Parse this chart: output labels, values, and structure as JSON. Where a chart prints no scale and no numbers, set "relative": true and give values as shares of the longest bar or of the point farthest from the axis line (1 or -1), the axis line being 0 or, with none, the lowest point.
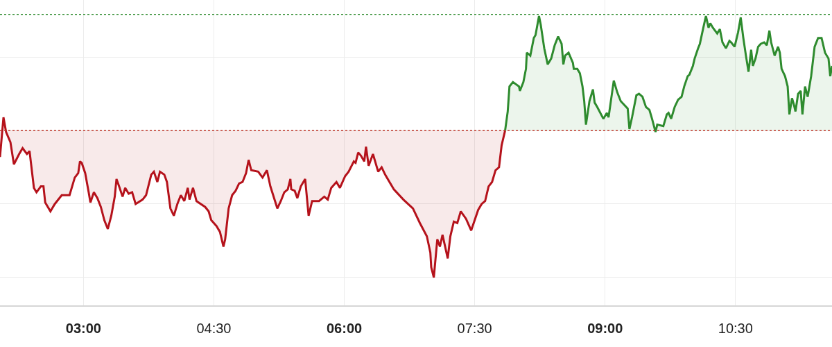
{
  "chart_data": {
    "type": "area",
    "relative": true,
    "grid": true,
    "tick_labels": "x",
    "line_style": "solid",
    "marker": "none",
    "xlim": [
      2.04,
      11.61
    ],
    "xticks": [
      {
        "value": 3,
        "label": "03:00"
      },
      {
        "value": 4.5,
        "label": "04:30"
      },
      {
        "value": 6,
        "label": "06:00"
      },
      {
        "value": 7.5,
        "label": "07:30"
      },
      {
        "value": 9,
        "label": "09:00"
      },
      {
        "value": 10.5,
        "label": "10:30"
      }
    ],
    "ref_lines": [
      {
        "axis": "y",
        "value": 0,
        "label": null,
        "color": "#c0392b",
        "line_style": "dotted"
      },
      {
        "axis": "y",
        "value": 0.79,
        "label": null,
        "color": "#2e8b2e",
        "line_style": "dotted"
      }
    ],
    "series": [
      {
        "color": "#b5121b",
        "x": [
          2.04,
          2.08,
          2.11,
          2.16,
          2.2,
          2.26,
          2.3,
          2.35,
          2.38,
          2.43,
          2.46,
          2.51,
          2.54,
          2.56,
          2.62,
          2.67,
          2.75,
          2.84,
          2.9,
          2.94,
          2.96,
          2.98,
          3.02,
          3.06,
          3.08,
          3.12,
          3.16,
          3.2,
          3.24,
          3.28,
          3.32,
          3.36,
          3.38,
          3.41,
          3.45,
          3.48,
          3.52,
          3.56,
          3.6,
          3.68,
          3.72,
          3.78,
          3.81,
          3.85,
          3.88,
          3.93,
          3.96,
          4.0,
          4.04,
          4.08,
          4.12,
          4.16,
          4.2,
          4.22,
          4.26,
          4.3,
          4.4,
          4.44,
          4.47,
          4.53,
          4.57,
          4.61,
          4.63,
          4.67,
          4.71,
          4.75,
          4.79,
          4.83,
          4.87,
          4.9,
          4.93,
          5.01,
          5.06,
          5.11,
          5.15,
          5.23,
          5.27,
          5.31,
          5.35,
          5.38,
          5.39,
          5.43,
          5.46,
          5.5,
          5.55,
          5.59,
          5.63,
          5.71,
          5.77,
          5.81,
          5.85,
          5.91,
          5.95,
          6.01,
          6.05,
          6.11,
          6.13,
          6.16,
          6.19,
          6.23,
          6.25,
          6.28,
          6.33,
          6.39,
          6.43,
          6.47,
          6.57,
          6.68,
          6.79,
          6.87,
          6.95,
          6.99,
          7.0,
          7.03,
          7.07,
          7.1,
          7.13,
          7.19,
          7.22,
          7.26,
          7.3,
          7.34,
          7.4,
          7.46,
          7.54,
          7.58,
          7.62,
          7.66,
          7.7,
          7.74,
          7.78,
          7.81,
          7.85
        ],
        "values": [
          -0.18,
          0.09,
          -0.01,
          -0.08,
          -0.23,
          -0.16,
          -0.12,
          -0.16,
          -0.14,
          -0.39,
          -0.42,
          -0.38,
          -0.38,
          -0.49,
          -0.55,
          -0.5,
          -0.44,
          -0.44,
          -0.32,
          -0.29,
          -0.21,
          -0.22,
          -0.29,
          -0.42,
          -0.49,
          -0.42,
          -0.46,
          -0.52,
          -0.61,
          -0.67,
          -0.58,
          -0.45,
          -0.33,
          -0.38,
          -0.45,
          -0.39,
          -0.43,
          -0.42,
          -0.5,
          -0.47,
          -0.44,
          -0.3,
          -0.28,
          -0.35,
          -0.28,
          -0.3,
          -0.35,
          -0.53,
          -0.58,
          -0.5,
          -0.44,
          -0.48,
          -0.39,
          -0.47,
          -0.39,
          -0.48,
          -0.52,
          -0.55,
          -0.61,
          -0.65,
          -0.69,
          -0.79,
          -0.74,
          -0.53,
          -0.44,
          -0.41,
          -0.36,
          -0.35,
          -0.29,
          -0.2,
          -0.27,
          -0.28,
          -0.32,
          -0.27,
          -0.38,
          -0.53,
          -0.48,
          -0.42,
          -0.4,
          -0.33,
          -0.4,
          -0.41,
          -0.46,
          -0.38,
          -0.33,
          -0.58,
          -0.48,
          -0.48,
          -0.45,
          -0.47,
          -0.39,
          -0.35,
          -0.39,
          -0.31,
          -0.28,
          -0.21,
          -0.22,
          -0.15,
          -0.17,
          -0.21,
          -0.11,
          -0.24,
          -0.16,
          -0.28,
          -0.25,
          -0.3,
          -0.4,
          -0.47,
          -0.53,
          -0.63,
          -0.72,
          -0.83,
          -0.93,
          -1,
          -0.74,
          -0.79,
          -0.71,
          -0.87,
          -0.72,
          -0.62,
          -0.63,
          -0.55,
          -0.6,
          -0.68,
          -0.54,
          -0.5,
          -0.48,
          -0.38,
          -0.35,
          -0.27,
          -0.25,
          -0.1,
          0
        ]
      },
      {
        "color": "#2e8b2e",
        "x": [
          7.85,
          7.88,
          7.9,
          7.94,
          8.01,
          8.02,
          8.06,
          8.09,
          8.1,
          8.14,
          8.18,
          8.2,
          8.24,
          8.26,
          8.3,
          8.34,
          8.38,
          8.42,
          8.46,
          8.5,
          8.52,
          8.54,
          8.58,
          8.63,
          8.64,
          8.68,
          8.71,
          8.74,
          8.76,
          8.78,
          8.82,
          8.86,
          8.88,
          8.91,
          8.98,
          9.02,
          9.04,
          9.1,
          9.14,
          9.18,
          9.26,
          9.28,
          9.31,
          9.36,
          9.39,
          9.43,
          9.47,
          9.51,
          9.54,
          9.58,
          9.6,
          9.67,
          9.71,
          9.73,
          9.76,
          9.8,
          9.84,
          9.88,
          9.91,
          9.95,
          9.97,
          10.01,
          10.03,
          10.07,
          10.09,
          10.13,
          10.16,
          10.19,
          10.21,
          10.24,
          10.29,
          10.32,
          10.35,
          10.39,
          10.43,
          10.45,
          10.49,
          10.53,
          10.56,
          10.59,
          10.62,
          10.65,
          10.68,
          10.7,
          10.73,
          10.76,
          10.79,
          10.83,
          10.86,
          10.89,
          10.91,
          10.95,
          10.99,
          11.01,
          11.03,
          11.07,
          11.1,
          11.12,
          11.15,
          11.17,
          11.19,
          11.22,
          11.25,
          11.27,
          11.3,
          11.33,
          11.37,
          11.41,
          11.45,
          11.49,
          11.53,
          11.57,
          11.59,
          11.61
        ],
        "values": [
          0,
          0.13,
          0.3,
          0.33,
          0.3,
          0.27,
          0.33,
          0.42,
          0.53,
          0.51,
          0.63,
          0.65,
          0.78,
          0.72,
          0.56,
          0.45,
          0.49,
          0.58,
          0.64,
          0.59,
          0.45,
          0.51,
          0.53,
          0.46,
          0.42,
          0.42,
          0.39,
          0.3,
          0.2,
          0.04,
          0.2,
          0.28,
          0.19,
          0.16,
          0.08,
          0.12,
          0.09,
          0.34,
          0.26,
          0.2,
          0.15,
          0.01,
          0.09,
          0.24,
          0.25,
          0.23,
          0.16,
          0.14,
          0.08,
          -0.01,
          0.04,
          0.03,
          0.11,
          0.12,
          0.08,
          0.16,
          0.21,
          0.23,
          0.3,
          0.37,
          0.38,
          0.44,
          0.49,
          0.56,
          0.59,
          0.7,
          0.78,
          0.7,
          0.73,
          0.7,
          0.66,
          0.69,
          0.6,
          0.56,
          0.61,
          0.6,
          0.57,
          0.67,
          0.77,
          0.63,
          0.51,
          0.4,
          0.55,
          0.44,
          0.49,
          0.57,
          0.59,
          0.6,
          0.58,
          0.68,
          0.6,
          0.51,
          0.57,
          0.53,
          0.42,
          0.37,
          0.3,
          0.11,
          0.22,
          0.18,
          0.13,
          0.25,
          0.27,
          0.11,
          0.3,
          0.23,
          0.37,
          0.57,
          0.63,
          0.63,
          0.53,
          0.49,
          0.37,
          0.44
        ]
      }
    ]
  }
}
